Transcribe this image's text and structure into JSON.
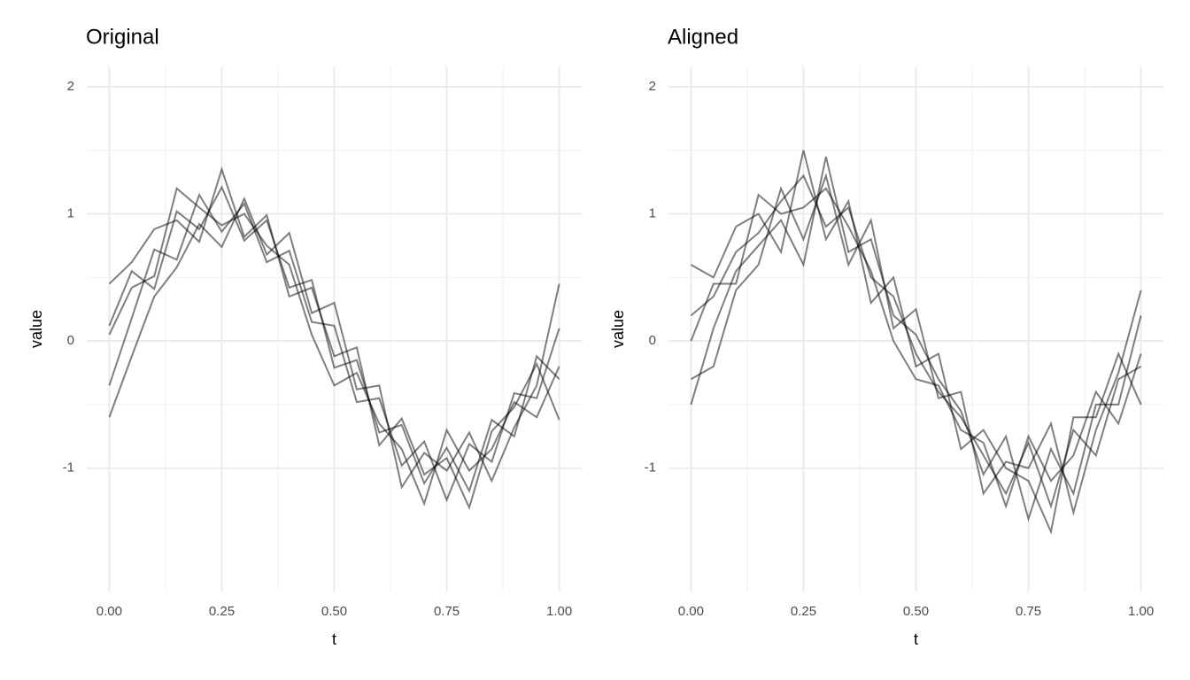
{
  "chart_data": [
    {
      "type": "line",
      "title": "Original",
      "x_label": "t",
      "y_label": "value",
      "x": [
        0,
        0.05,
        0.1,
        0.15,
        0.2,
        0.25,
        0.3,
        0.35,
        0.4,
        0.45,
        0.5,
        0.55,
        0.6,
        0.65,
        0.7,
        0.75,
        0.8,
        0.85,
        0.9,
        0.95,
        1
      ],
      "series": [
        {
          "color": "#000000",
          "values": [
            0.12,
            0.55,
            0.41,
            1.02,
            0.88,
            1.21,
            0.79,
            0.95,
            0.42,
            0.48,
            -0.21,
            -0.15,
            -0.72,
            -0.66,
            -1.12,
            -0.84,
            -1.18,
            -0.62,
            -0.75,
            -0.12,
            -0.3
          ]
        },
        {
          "color": "#000000",
          "values": [
            -0.35,
            0.18,
            0.72,
            0.64,
            1.15,
            0.86,
            1.08,
            0.62,
            0.71,
            0.15,
            0.12,
            -0.48,
            -0.45,
            -0.98,
            -0.79,
            -1.25,
            -0.81,
            -0.95,
            -0.41,
            -0.45,
            0.1
          ]
        },
        {
          "color": "#000000",
          "values": [
            0.45,
            0.62,
            0.88,
            0.95,
            0.78,
            1.35,
            0.82,
            0.99,
            0.35,
            0.42,
            -0.12,
            -0.05,
            -0.82,
            -0.61,
            -1.05,
            -0.92,
            -1.31,
            -0.71,
            -0.52,
            -0.18,
            -0.62
          ]
        },
        {
          "color": "#000000",
          "values": [
            -0.6,
            -0.12,
            0.35,
            0.58,
            0.92,
            0.74,
            1.12,
            0.68,
            0.85,
            0.22,
            0.3,
            -0.38,
            -0.35,
            -1.15,
            -0.88,
            -1.02,
            -0.72,
            -1.1,
            -0.68,
            -0.35,
            0.45
          ]
        },
        {
          "color": "#000000",
          "values": [
            0.05,
            0.42,
            0.51,
            1.2,
            1.05,
            0.91,
            1.0,
            0.75,
            0.6,
            0.05,
            -0.35,
            -0.25,
            -0.65,
            -0.85,
            -1.28,
            -0.7,
            -1.02,
            -0.85,
            -0.48,
            -0.6,
            -0.2
          ]
        }
      ],
      "opacity": 0.5,
      "grid": true,
      "xlim": [
        -0.05,
        1.05
      ],
      "ylim": [
        -1.97,
        2.16
      ],
      "xticks": [
        {
          "value": 0,
          "label": "0.00"
        },
        {
          "value": 0.25,
          "label": "0.25"
        },
        {
          "value": 0.5,
          "label": "0.50"
        },
        {
          "value": 0.75,
          "label": "0.75"
        },
        {
          "value": 1,
          "label": "1.00"
        }
      ],
      "yticks": [
        -1,
        0,
        1,
        2
      ]
    },
    {
      "type": "line",
      "title": "Aligned",
      "x_label": "t",
      "y_label": "value",
      "x": [
        0,
        0.05,
        0.1,
        0.15,
        0.2,
        0.25,
        0.3,
        0.35,
        0.4,
        0.45,
        0.5,
        0.55,
        0.6,
        0.65,
        0.7,
        0.75,
        0.8,
        0.85,
        0.9,
        0.95,
        1
      ],
      "series": [
        {
          "color": "#000000",
          "values": [
            0.2,
            0.35,
            0.7,
            0.85,
            1.1,
            1.3,
            0.9,
            1.05,
            0.5,
            0.35,
            -0.1,
            -0.4,
            -0.6,
            -0.9,
            -1.2,
            -0.8,
            -1.3,
            -0.7,
            -0.9,
            -0.3,
            -0.2
          ]
        },
        {
          "color": "#000000",
          "values": [
            -0.5,
            0.1,
            0.55,
            0.75,
            0.95,
            0.6,
            1.45,
            0.7,
            0.8,
            0.2,
            0.05,
            -0.3,
            -0.55,
            -1.05,
            -0.75,
            -1.4,
            -0.85,
            -1.2,
            -0.5,
            -0.5,
            0.2
          ]
        },
        {
          "color": "#000000",
          "values": [
            0.6,
            0.5,
            0.9,
            1.0,
            0.7,
            1.5,
            0.8,
            1.1,
            0.3,
            0.5,
            -0.2,
            -0.1,
            -0.85,
            -0.7,
            -1.0,
            -1.1,
            -1.5,
            -0.6,
            -0.6,
            -0.1,
            -0.5
          ]
        },
        {
          "color": "#000000",
          "values": [
            -0.3,
            -0.2,
            0.4,
            0.6,
            1.2,
            0.8,
            1.3,
            0.6,
            0.95,
            0.1,
            0.25,
            -0.45,
            -0.4,
            -1.2,
            -0.95,
            -1.0,
            -0.65,
            -1.35,
            -0.7,
            -0.25,
            0.4
          ]
        },
        {
          "color": "#000000",
          "values": [
            0.0,
            0.45,
            0.45,
            1.15,
            1.0,
            1.05,
            1.2,
            0.9,
            0.55,
            0.0,
            -0.3,
            -0.35,
            -0.7,
            -0.8,
            -1.3,
            -0.75,
            -1.1,
            -0.9,
            -0.4,
            -0.65,
            -0.1
          ]
        }
      ],
      "opacity": 0.5,
      "grid": true,
      "xlim": [
        -0.05,
        1.05
      ],
      "ylim": [
        -1.97,
        2.16
      ],
      "xticks": [
        {
          "value": 0,
          "label": "0.00"
        },
        {
          "value": 0.25,
          "label": "0.25"
        },
        {
          "value": 0.5,
          "label": "0.50"
        },
        {
          "value": 0.75,
          "label": "0.75"
        },
        {
          "value": 1,
          "label": "1.00"
        }
      ],
      "yticks": [
        -1,
        0,
        1,
        2
      ]
    }
  ]
}
